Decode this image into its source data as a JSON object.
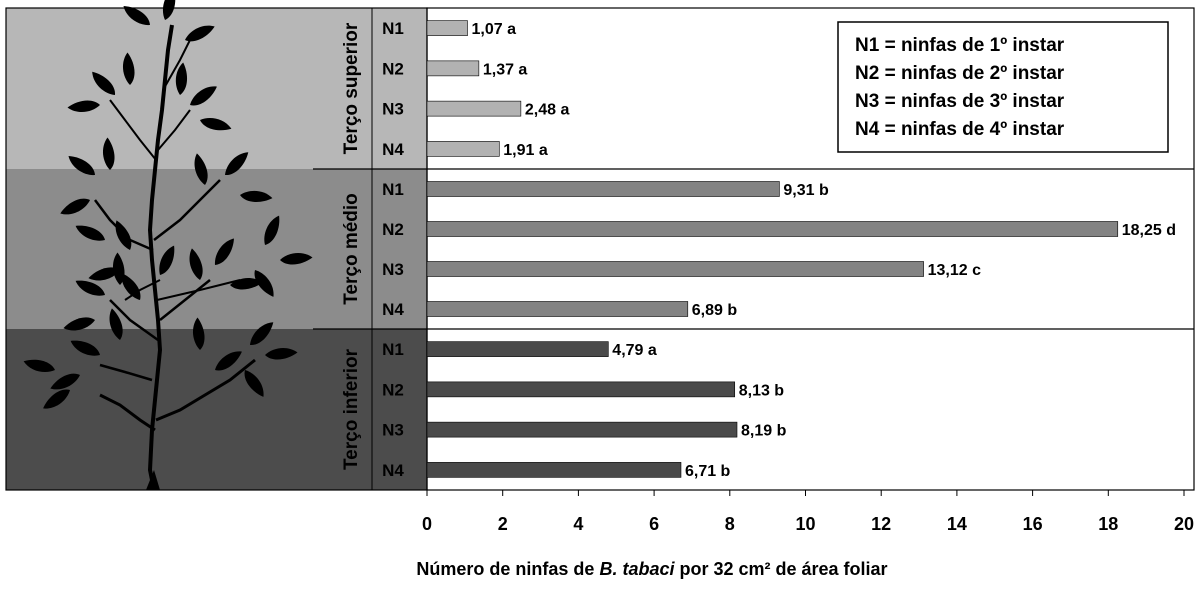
{
  "chart_data": {
    "type": "bar",
    "orientation": "horizontal",
    "xlim": [
      0,
      20
    ],
    "xticks": [
      "0",
      "2",
      "4",
      "6",
      "8",
      "10",
      "12",
      "14",
      "16",
      "18",
      "20"
    ],
    "xlabel": {
      "pre": "Número de ninfas de ",
      "species": "B. tabaci",
      "post": " por 32 cm² de área foliar"
    },
    "legend": {
      "placement": "top-right",
      "entries": [
        "N1 = ninfas de 1º instar",
        "N2 = ninfas de 2º instar",
        "N3 = ninfas de 3º instar",
        "N4 = ninfas de 4º instar"
      ]
    },
    "groups": [
      {
        "name": "Terço superior",
        "color": "#b2b2b2",
        "band_color": "#b7b7b7",
        "bars": [
          {
            "category": "N1",
            "value": 1.07,
            "label": "1,07 a"
          },
          {
            "category": "N2",
            "value": 1.37,
            "label": "1,37 a"
          },
          {
            "category": "N3",
            "value": 2.48,
            "label": "2,48 a"
          },
          {
            "category": "N4",
            "value": 1.91,
            "label": "1,91 a"
          }
        ]
      },
      {
        "name": "Terço médio",
        "color": "#838383",
        "band_color": "#8c8c8c",
        "bars": [
          {
            "category": "N1",
            "value": 9.31,
            "label": "9,31 b"
          },
          {
            "category": "N2",
            "value": 18.25,
            "label": "18,25 d"
          },
          {
            "category": "N3",
            "value": 13.12,
            "label": "13,12 c"
          },
          {
            "category": "N4",
            "value": 6.89,
            "label": "6,89 b"
          }
        ]
      },
      {
        "name": "Terço inferior",
        "color": "#4a4a4a",
        "band_color": "#4c4c4c",
        "bars": [
          {
            "category": "N1",
            "value": 4.79,
            "label": "4,79 a"
          },
          {
            "category": "N2",
            "value": 8.13,
            "label": "8,13 b"
          },
          {
            "category": "N3",
            "value": 8.19,
            "label": "8,19 b"
          },
          {
            "category": "N4",
            "value": 6.71,
            "label": "6,71 b"
          }
        ]
      }
    ],
    "illustration": "plant-silhouette-icon"
  }
}
